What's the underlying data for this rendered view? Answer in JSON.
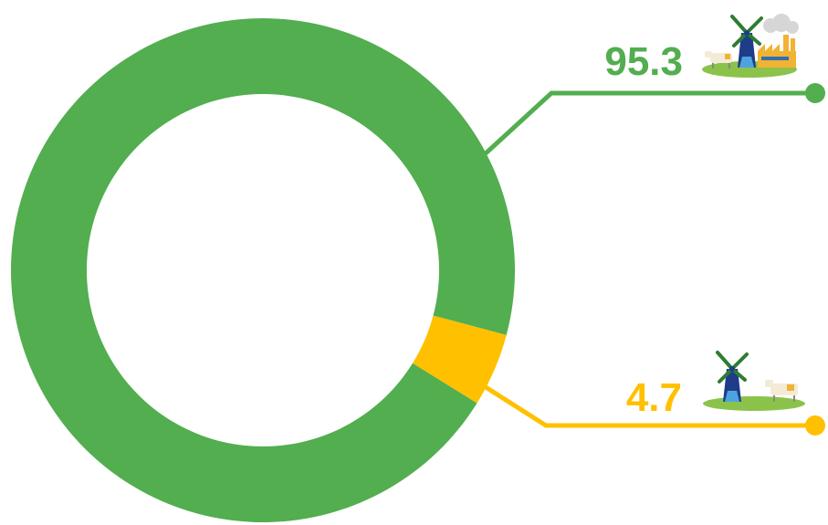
{
  "chart_data": {
    "type": "pie",
    "variant": "donut",
    "categories": [
      "",
      ""
    ],
    "values": [
      95.3,
      4.7
    ],
    "value_labels": [
      "95.3",
      "4.7"
    ],
    "colors": [
      "#52AE4F",
      "#FFC000"
    ],
    "icons": [
      "windmill-cow-factory-icon",
      "windmill-cow-icon"
    ],
    "title": "",
    "legend": "none"
  }
}
